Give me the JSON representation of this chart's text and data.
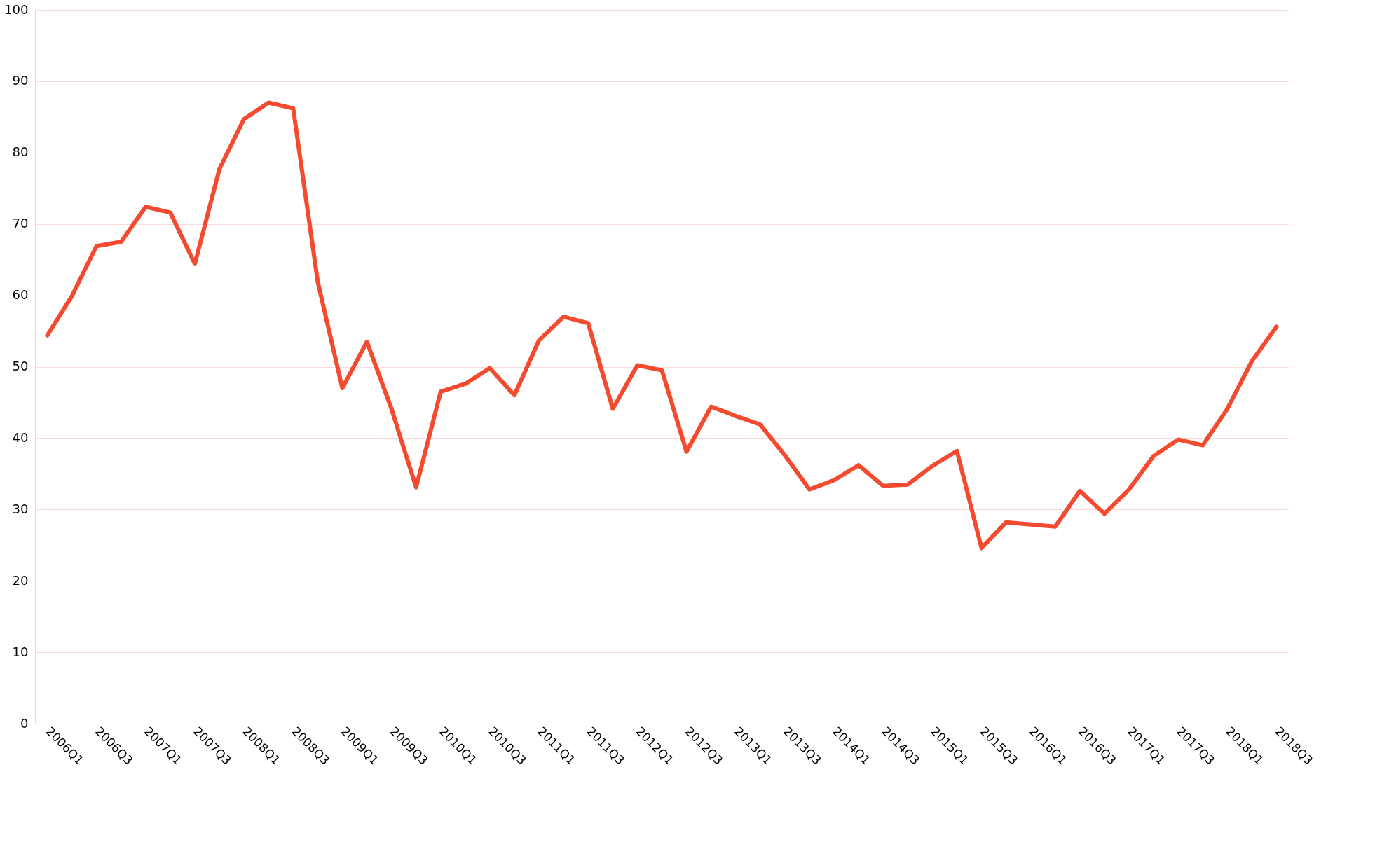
{
  "chart_data": {
    "type": "line",
    "categories": [
      "2006Q1",
      null,
      "2006Q3",
      null,
      "2007Q1",
      null,
      "2007Q3",
      null,
      "2008Q1",
      null,
      "2008Q3",
      null,
      "2009Q1",
      null,
      "2009Q3",
      null,
      "2010Q1",
      null,
      "2010Q3",
      null,
      "2011Q1",
      null,
      "2011Q3",
      null,
      "2012Q1",
      null,
      "2012Q3",
      null,
      "2013Q1",
      null,
      "2013Q3",
      null,
      "2014Q1",
      null,
      "2014Q3",
      null,
      "2015Q1",
      null,
      "2015Q3",
      null,
      "2016Q1",
      null,
      "2016Q3",
      null,
      "2017Q1",
      null,
      "2017Q3",
      null,
      "2018Q1",
      null,
      "2018Q3"
    ],
    "series": [
      {
        "color": "#f44a2f",
        "values": [
          54.4,
          59.9,
          66.9,
          67.5,
          72.4,
          71.6,
          64.4,
          77.7,
          84.7,
          87.0,
          86.2,
          61.9,
          47.0,
          53.5,
          44.1,
          33.1,
          46.5,
          47.6,
          49.8,
          46.0,
          53.7,
          57.0,
          56.1,
          44.1,
          50.2,
          49.5,
          38.1,
          44.4,
          43.1,
          41.9,
          37.6,
          32.8,
          34.1,
          36.2,
          33.3,
          33.5,
          36.1,
          38.2,
          24.6,
          28.2,
          27.9,
          27.6,
          32.6,
          29.4,
          32.8,
          37.5,
          39.8,
          39.0,
          44.1,
          50.8,
          55.6
        ]
      }
    ],
    "ylim": [
      0,
      100
    ],
    "yticks": [
      0,
      10,
      20,
      30,
      40,
      50,
      60,
      70,
      80,
      90,
      100
    ],
    "grid": "y",
    "marker": "none",
    "line_style": "solid"
  }
}
